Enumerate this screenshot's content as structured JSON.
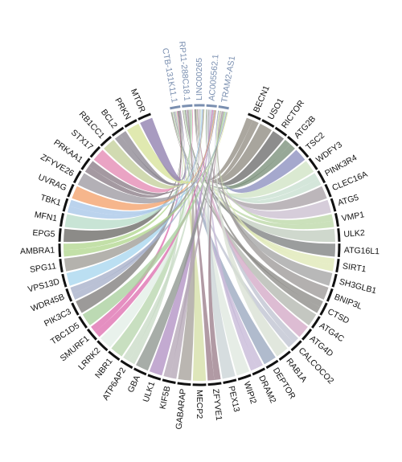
{
  "lncrnas": [
    "CTB-131K11.1",
    "RP11-288C18.1",
    "LINC00265",
    "AC005562.1",
    "TRAM2-AS1"
  ],
  "lncrna_colors": [
    "#cfd6c8",
    "#b9c7de",
    "#c9ccc0",
    "#dfe3da",
    "#d7c3e4"
  ],
  "genes": [
    {
      "name": "BECN1",
      "color": "#948e84"
    },
    {
      "name": "USO1",
      "color": "#8f8c82"
    },
    {
      "name": "RICTOR",
      "color": "#6d6d6d"
    },
    {
      "name": "ATG2B",
      "color": "#7a8f7a"
    },
    {
      "name": "TSC2",
      "color": "#8c8fbf"
    },
    {
      "name": "WDFY3",
      "color": "#cfe3c4"
    },
    {
      "name": "PINK3R4",
      "color": "#c8dfd0"
    },
    {
      "name": "CLEC16A",
      "color": "#a9a2a6"
    },
    {
      "name": "ATG5",
      "color": "#cbbfcf"
    },
    {
      "name": "VMP1",
      "color": "#bcd9a8"
    },
    {
      "name": "ULK2",
      "color": "#c2cdbf"
    },
    {
      "name": "ATG16L1",
      "color": "#7f8281"
    },
    {
      "name": "SIRT1",
      "color": "#dfe8b6"
    },
    {
      "name": "SH3GLB1",
      "color": "#a4a4a4"
    },
    {
      "name": "BNIP3L",
      "color": "#9e9a99"
    },
    {
      "name": "CTSD",
      "color": "#8d8c88"
    },
    {
      "name": "ATG4C",
      "color": "#b3b7b0"
    },
    {
      "name": "ATG4D",
      "color": "#d3a9c6"
    },
    {
      "name": "CALCOCO2",
      "color": "#bfc3d1"
    },
    {
      "name": "RAB1A",
      "color": "#d8e0d4"
    },
    {
      "name": "DEPTOR",
      "color": "#9aa8bf"
    },
    {
      "name": "DRAM2",
      "color": "#c7b8d7"
    },
    {
      "name": "WIPI2",
      "color": "#dfe8df"
    },
    {
      "name": "PEX13",
      "color": "#cad3d6"
    },
    {
      "name": "ZFYVE1",
      "color": "#9b7d8a"
    },
    {
      "name": "MECP2",
      "color": "#d5dfa7"
    },
    {
      "name": "GABARAP",
      "color": "#a7a29b"
    },
    {
      "name": "KIF5B",
      "color": "#b5a7b6"
    },
    {
      "name": "ULK1",
      "color": "#b292c4"
    },
    {
      "name": "GBA",
      "color": "#8e968f"
    },
    {
      "name": "ATP6AP2",
      "color": "#c9dbc6"
    },
    {
      "name": "NBR1",
      "color": "#b9d6ae"
    },
    {
      "name": "LRRK2",
      "color": "#e3eee7"
    },
    {
      "name": "SMURF1",
      "color": "#de6fb0"
    },
    {
      "name": "TBC1D5",
      "color": "#a9cf9e"
    },
    {
      "name": "PIK3C3",
      "color": "#807e7c"
    },
    {
      "name": "WDR45B",
      "color": "#a6b0c9"
    },
    {
      "name": "VPS13D",
      "color": "#a8d6ee"
    },
    {
      "name": "SPG11",
      "color": "#9f9c96"
    },
    {
      "name": "AMBRA1",
      "color": "#b2d78f"
    },
    {
      "name": "EPG5",
      "color": "#6c6a66"
    },
    {
      "name": "MFN1",
      "color": "#b9dcc9"
    },
    {
      "name": "TBK1",
      "color": "#a8c6e8"
    },
    {
      "name": "UVRAG",
      "color": "#f4a26c"
    },
    {
      "name": "ZFYVE26",
      "color": "#9e9aa1"
    },
    {
      "name": "PRKAA1",
      "color": "#8a7c87"
    },
    {
      "name": "STX17",
      "color": "#e48ab3"
    },
    {
      "name": "RB1CC1",
      "color": "#c4d09b"
    },
    {
      "name": "BCL2",
      "color": "#8d8892"
    },
    {
      "name": "PRKN",
      "color": "#d7e39a"
    },
    {
      "name": "MTOR",
      "color": "#8f7fae"
    }
  ]
}
